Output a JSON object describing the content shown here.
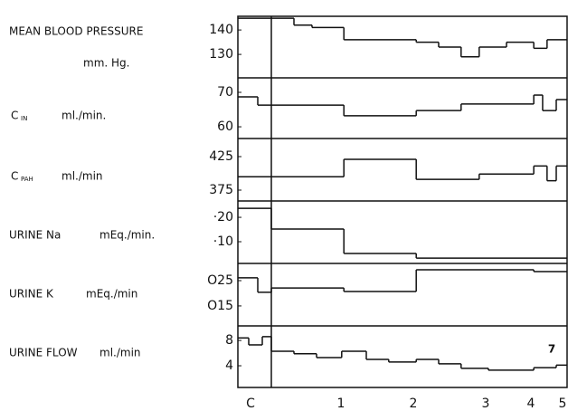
{
  "chart_data": [
    {
      "type": "step",
      "title": "MEAN BLOOD PRESSURE",
      "unit": "mm. Hg.",
      "color": "#111111",
      "xlim": [
        -0.14,
        5.15
      ],
      "ylim": [
        120.4,
        145.6
      ],
      "yticks": [
        140,
        130
      ],
      "x": [
        -0.14,
        0.48,
        0.68,
        1.04,
        2.04,
        2.35,
        2.66,
        2.91,
        3.46,
        4.09,
        4.51
      ],
      "values": [
        144.8,
        142,
        141,
        136,
        135,
        133,
        129,
        133,
        135,
        132.5,
        136
      ]
    },
    {
      "type": "step",
      "title": "C",
      "title_sub": "IN",
      "unit": "ml./min.",
      "color": "#111111",
      "xlim": [
        -0.14,
        5.15
      ],
      "ylim": [
        56.6,
        74.2
      ],
      "yticks": [
        70,
        60
      ],
      "x": [
        -0.14,
        0.08,
        1.04,
        2.04,
        2.66,
        4.09,
        4.37,
        4.8
      ],
      "values": [
        68.7,
        66.3,
        63.2,
        64.7,
        66.6,
        69.2,
        64.7,
        67.9
      ]
    },
    {
      "type": "step",
      "title": "C",
      "title_sub": "PAH",
      "unit": "ml./min",
      "color": "#111111",
      "xlim": [
        -0.14,
        5.15
      ],
      "ylim": [
        358.8,
        452
      ],
      "yticks": [
        425,
        375
      ],
      "x": [
        -0.14,
        1.04,
        2.04,
        2.91,
        4.09,
        4.51,
        4.8
      ],
      "values": [
        395,
        421,
        391,
        399,
        411,
        389,
        411
      ]
    },
    {
      "type": "step",
      "title": "URINE Na",
      "unit": "mEq./min.",
      "color": "#111111",
      "xlim": [
        -0.14,
        5.15
      ],
      "ylim": [
        0.011,
        0.267
      ],
      "yticks": [
        {
          "value": 0.2,
          "label": "·20"
        },
        {
          "value": 0.1,
          "label": "·10"
        }
      ],
      "x": [
        -0.14,
        0.23,
        1.04,
        2.04
      ],
      "values": [
        0.237,
        0.152,
        0.052,
        0.033
      ]
    },
    {
      "type": "step",
      "title": "URINE K",
      "unit": "mEq./min",
      "color": "#111111",
      "xlim": [
        -0.14,
        5.15
      ],
      "ylim": [
        0.0071,
        0.0318
      ],
      "yticks": [
        {
          "value": 0.025,
          "label": "O25"
        },
        {
          "value": 0.015,
          "label": "O15"
        }
      ],
      "x": [
        -0.14,
        0.08,
        0.23,
        1.04,
        2.04,
        4.09
      ],
      "values": [
        0.0261,
        0.0204,
        0.0221,
        0.0207,
        0.0293,
        0.0286
      ]
    },
    {
      "type": "step",
      "title": "URINE FLOW",
      "unit": "ml./min",
      "color": "#111111",
      "annotation": "7",
      "xlim": [
        -0.14,
        5.15
      ],
      "ylim": [
        0.57,
        10.3
      ],
      "yticks": [
        8,
        4
      ],
      "xticks": [
        {
          "value": 0,
          "label": "C"
        },
        1,
        2,
        3,
        4,
        5
      ],
      "x": [
        -0.14,
        -0.02,
        0.13,
        0.23,
        0.48,
        0.73,
        1.01,
        1.35,
        1.66,
        2.04,
        2.35,
        2.66,
        3.06,
        4.09,
        4.8
      ],
      "values": [
        8.4,
        7.3,
        8.6,
        6.3,
        5.9,
        5.3,
        6.3,
        5,
        4.6,
        5,
        4.3,
        3.6,
        3.3,
        3.7,
        4.1
      ]
    }
  ]
}
